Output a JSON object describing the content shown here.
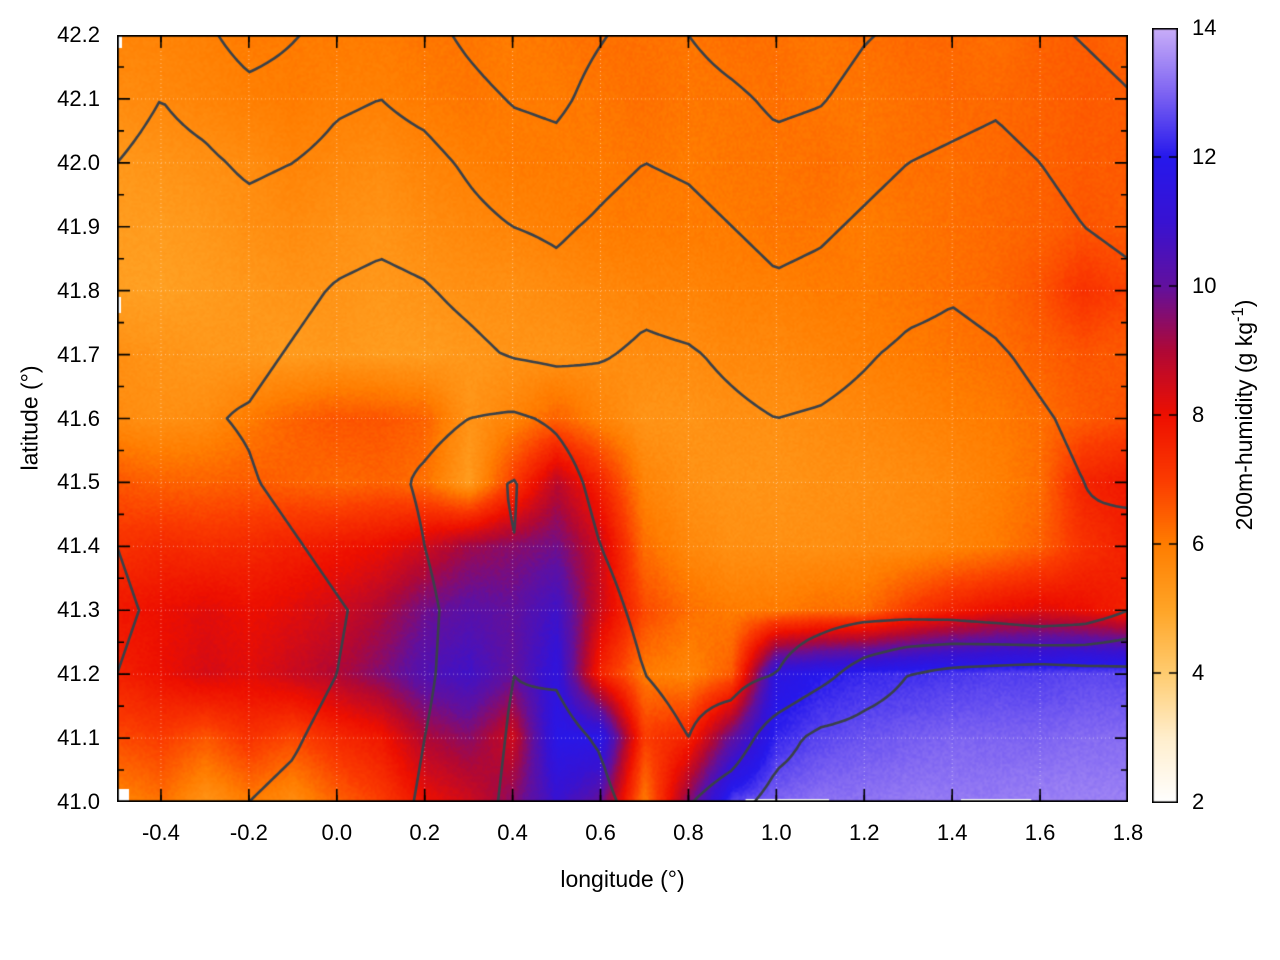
{
  "chart_data": {
    "type": "heatmap",
    "xlabel": "longitude (°)",
    "ylabel": "latitude (°)",
    "x_range": [
      -0.5,
      1.8
    ],
    "y_range": [
      41.0,
      42.2
    ],
    "x_ticks": {
      "values": [
        -0.4,
        -0.2,
        0.0,
        0.2,
        0.4,
        0.6,
        0.8,
        1.0,
        1.2,
        1.4,
        1.6,
        1.8
      ],
      "labels": [
        "-0.4",
        "-0.2",
        "0.0",
        "0.2",
        "0.4",
        "0.6",
        "0.8",
        "1.0",
        "1.2",
        "1.4",
        "1.6",
        "1.8"
      ],
      "minor_step": 0.1
    },
    "y_ticks": {
      "values": [
        41.0,
        41.1,
        41.2,
        41.3,
        41.4,
        41.5,
        41.6,
        41.7,
        41.8,
        41.9,
        42.0,
        42.1,
        42.2
      ],
      "labels": [
        "41.0",
        "41.1",
        "41.2",
        "41.3",
        "41.4",
        "41.5",
        "41.6",
        "41.7",
        "41.8",
        "41.9",
        "42.0",
        "42.1",
        "42.2"
      ],
      "minor_step": 0.05
    },
    "grid_on": true,
    "colorbar": {
      "range": [
        2,
        14
      ],
      "ticks": {
        "values": [
          2,
          4,
          6,
          8,
          10,
          12,
          14
        ],
        "labels": [
          "2",
          "4",
          "6",
          "8",
          "10",
          "12",
          "14"
        ]
      },
      "label_prefix": "200m-humidity (g kg",
      "label_sup": "-1",
      "label_suffix": ")"
    },
    "palette_stops": [
      [
        2,
        "#ffffff"
      ],
      [
        3,
        "#ffeecd"
      ],
      [
        4,
        "#ffcc70"
      ],
      [
        5,
        "#ffa426"
      ],
      [
        6,
        "#ff7d00"
      ],
      [
        7,
        "#fb3b00"
      ],
      [
        8,
        "#ee0f00"
      ],
      [
        9,
        "#b00836"
      ],
      [
        10,
        "#62109e"
      ],
      [
        11,
        "#3812d2"
      ],
      [
        12,
        "#2618ec"
      ],
      [
        13,
        "#7e64f2"
      ],
      [
        14,
        "#c9aef8"
      ]
    ],
    "humidity": {
      "units": "g kg-1",
      "lon_start": -0.5,
      "lon_step": 0.1,
      "lat_start": 42.2,
      "lat_step": -0.1,
      "values": [
        [
          5.8,
          5.8,
          5.9,
          6.0,
          6.0,
          6.0,
          6.0,
          6.1,
          6.1,
          6.0,
          6.1,
          6.2,
          6.2,
          6.1,
          6.2,
          6.2,
          6.1,
          6.2,
          6.3,
          6.3,
          6.2,
          6.4,
          6.5,
          6.4
        ],
        [
          5.6,
          5.7,
          5.8,
          5.9,
          6.0,
          5.9,
          5.9,
          6.0,
          6.1,
          6.0,
          6.0,
          6.1,
          6.2,
          6.1,
          6.1,
          6.2,
          6.1,
          6.1,
          6.2,
          6.3,
          6.3,
          6.4,
          6.5,
          6.5
        ],
        [
          5.3,
          5.4,
          5.5,
          5.6,
          5.8,
          5.7,
          5.6,
          5.8,
          5.9,
          6.0,
          6.0,
          6.0,
          6.1,
          6.0,
          6.1,
          6.1,
          6.2,
          6.1,
          6.2,
          6.2,
          6.3,
          6.4,
          6.5,
          6.5
        ],
        [
          5.2,
          5.2,
          5.3,
          5.5,
          5.6,
          5.5,
          5.4,
          5.6,
          5.7,
          5.8,
          5.9,
          6.0,
          6.0,
          6.0,
          6.0,
          6.1,
          6.1,
          6.0,
          6.1,
          6.2,
          6.3,
          6.4,
          6.6,
          6.5
        ],
        [
          5.1,
          5.1,
          5.2,
          5.3,
          5.4,
          5.4,
          5.3,
          5.4,
          5.5,
          5.5,
          5.6,
          5.7,
          5.8,
          5.8,
          5.9,
          5.9,
          6.0,
          6.0,
          6.1,
          6.2,
          6.3,
          6.6,
          7.2,
          6.9
        ],
        [
          5.5,
          5.4,
          5.3,
          5.3,
          5.2,
          5.3,
          5.2,
          5.2,
          5.3,
          5.4,
          5.4,
          5.5,
          5.6,
          5.6,
          5.7,
          5.7,
          5.8,
          5.9,
          6.0,
          6.1,
          6.2,
          6.4,
          6.6,
          6.5
        ],
        [
          5.6,
          5.5,
          5.6,
          6.0,
          6.4,
          6.6,
          6.6,
          6.4,
          5.4,
          5.8,
          6.4,
          5.8,
          5.4,
          5.4,
          5.5,
          5.5,
          5.6,
          5.7,
          5.8,
          5.9,
          6.0,
          6.2,
          6.5,
          6.7
        ],
        [
          6.6,
          6.4,
          6.4,
          6.5,
          6.4,
          6.3,
          6.4,
          6.2,
          5.2,
          7.0,
          8.8,
          7.5,
          5.8,
          5.5,
          5.4,
          5.4,
          5.5,
          5.5,
          5.6,
          5.7,
          5.9,
          6.2,
          7.5,
          7.8
        ],
        [
          7.2,
          7.4,
          7.3,
          7.4,
          7.6,
          7.8,
          8.0,
          8.5,
          9.2,
          9.5,
          9.8,
          8.5,
          6.2,
          5.7,
          5.5,
          5.5,
          5.5,
          5.6,
          5.6,
          5.8,
          6.0,
          6.4,
          7.2,
          7.6
        ],
        [
          7.8,
          8.0,
          8.2,
          8.0,
          8.2,
          8.5,
          9.0,
          9.8,
          10.2,
          10.0,
          10.8,
          8.5,
          6.8,
          6.2,
          6.0,
          6.0,
          6.2,
          6.2,
          7.0,
          7.6,
          8.0,
          8.2,
          8.0,
          7.6
        ],
        [
          7.6,
          8.0,
          8.4,
          8.2,
          8.6,
          9.0,
          9.6,
          10.4,
          10.8,
          10.0,
          11.4,
          7.5,
          6.0,
          5.8,
          6.5,
          11.5,
          12.0,
          12.2,
          12.3,
          12.4,
          12.5,
          12.5,
          12.6,
          12.6
        ],
        [
          6.8,
          7.0,
          6.6,
          7.2,
          6.8,
          7.4,
          7.8,
          9.0,
          9.5,
          8.5,
          11.8,
          11.8,
          7.0,
          7.5,
          10.0,
          12.2,
          12.6,
          12.8,
          12.9,
          13.0,
          13.0,
          13.0,
          13.1,
          13.1
        ],
        [
          5.8,
          6.2,
          5.4,
          6.0,
          5.6,
          6.4,
          7.0,
          8.0,
          8.5,
          9.5,
          11.0,
          10.0,
          6.0,
          9.5,
          12.5,
          13.0,
          13.2,
          13.2,
          13.3,
          13.3,
          13.3,
          13.4,
          13.4,
          13.4
        ]
      ]
    },
    "contours": {
      "color": "#3a4149",
      "levels": [
        0,
        150,
        300,
        450,
        600,
        750
      ],
      "elevation": [
        [
          700,
          650,
          720,
          820,
          760,
          700,
          650,
          700,
          780,
          850,
          820,
          760,
          700,
          750,
          820,
          870,
          820,
          760,
          720,
          700,
          680,
          720,
          760,
          800
        ],
        [
          650,
          600,
          640,
          700,
          680,
          620,
          600,
          640,
          700,
          760,
          780,
          700,
          650,
          680,
          720,
          780,
          760,
          700,
          660,
          640,
          620,
          660,
          700,
          740
        ],
        [
          600,
          560,
          580,
          620,
          600,
          560,
          540,
          560,
          620,
          680,
          700,
          640,
          600,
          620,
          660,
          700,
          680,
          640,
          600,
          580,
          560,
          600,
          640,
          680
        ],
        [
          560,
          520,
          540,
          560,
          540,
          500,
          480,
          500,
          560,
          600,
          620,
          580,
          540,
          560,
          600,
          640,
          620,
          580,
          540,
          520,
          540,
          560,
          600,
          620
        ],
        [
          520,
          480,
          500,
          520,
          480,
          440,
          420,
          440,
          480,
          520,
          560,
          520,
          480,
          500,
          540,
          580,
          560,
          520,
          480,
          460,
          480,
          520,
          560,
          580
        ],
        [
          500,
          460,
          470,
          480,
          440,
          400,
          380,
          390,
          420,
          460,
          480,
          460,
          430,
          440,
          470,
          500,
          490,
          460,
          430,
          420,
          440,
          470,
          500,
          520
        ],
        [
          520,
          480,
          460,
          440,
          400,
          360,
          330,
          340,
          300,
          280,
          320,
          380,
          400,
          410,
          430,
          450,
          440,
          420,
          400,
          390,
          410,
          440,
          470,
          490
        ],
        [
          560,
          520,
          490,
          460,
          420,
          380,
          340,
          280,
          220,
          140,
          240,
          340,
          380,
          390,
          400,
          410,
          400,
          390,
          380,
          370,
          390,
          420,
          450,
          470
        ],
        [
          600,
          560,
          530,
          500,
          460,
          420,
          380,
          300,
          200,
          150,
          200,
          300,
          360,
          370,
          380,
          390,
          380,
          370,
          360,
          360,
          380,
          410,
          440,
          420
        ],
        [
          620,
          580,
          560,
          530,
          500,
          460,
          420,
          340,
          220,
          160,
          180,
          260,
          330,
          350,
          360,
          370,
          360,
          350,
          350,
          360,
          390,
          430,
          400,
          300
        ],
        [
          600,
          560,
          540,
          520,
          490,
          450,
          410,
          330,
          210,
          150,
          160,
          220,
          300,
          330,
          340,
          300,
          200,
          80,
          0,
          -40,
          -60,
          -80,
          -60,
          -40
        ],
        [
          560,
          520,
          500,
          480,
          460,
          420,
          380,
          300,
          200,
          140,
          120,
          160,
          260,
          300,
          240,
          60,
          -40,
          -60,
          -80,
          -90,
          -100,
          -110,
          -100,
          -90
        ],
        [
          520,
          490,
          470,
          450,
          430,
          400,
          360,
          280,
          190,
          130,
          100,
          120,
          200,
          160,
          60,
          -60,
          -80,
          -90,
          -100,
          -110,
          -120,
          -120,
          -110,
          -100
        ]
      ]
    },
    "style": {
      "grid_color": "rgba(255,255,255,0.5)",
      "border_color": "#000000",
      "tick_color": "#000000",
      "background": "#ffffff"
    },
    "edge_artifacts": {
      "white_rects": [
        [
          0,
          0,
          5,
          13
        ],
        [
          0,
          754,
          12,
          13
        ],
        [
          0,
          262,
          4,
          16
        ]
      ],
      "bottom_edge_white_spans_lon": [
        [
          0.93,
          1.12
        ],
        [
          1.42,
          1.58
        ]
      ]
    }
  }
}
